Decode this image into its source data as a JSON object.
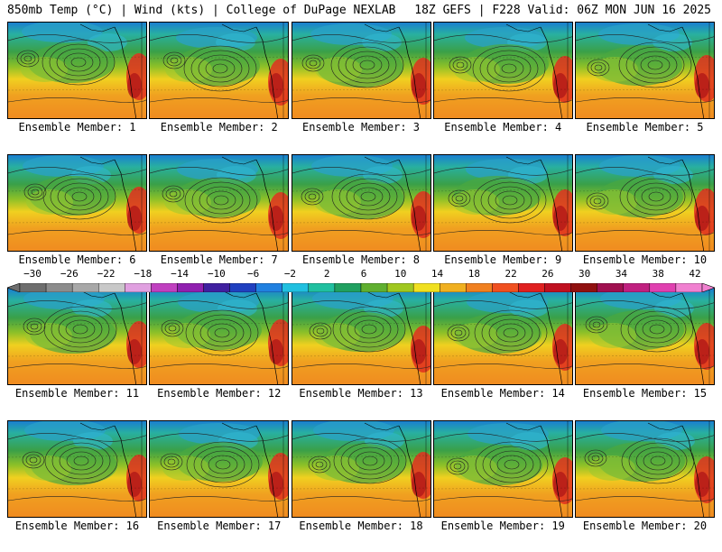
{
  "header": {
    "left": "850mb Temp (°C) | Wind (kts) | College of DuPage NEXLAB",
    "right": "18Z GEFS | F228 Valid: 06Z MON JUN 16 2025"
  },
  "members": [
    "Ensemble Member: 1",
    "Ensemble Member: 2",
    "Ensemble Member: 3",
    "Ensemble Member: 4",
    "Ensemble Member: 5",
    "Ensemble Member: 6",
    "Ensemble Member: 7",
    "Ensemble Member: 8",
    "Ensemble Member: 9",
    "Ensemble Member: 10",
    "Ensemble Member: 11",
    "Ensemble Member: 12",
    "Ensemble Member: 13",
    "Ensemble Member: 14",
    "Ensemble Member: 15",
    "Ensemble Member: 16",
    "Ensemble Member: 17",
    "Ensemble Member: 18",
    "Ensemble Member: 19",
    "Ensemble Member: 20"
  ],
  "colorbar": {
    "ticks": [
      "−30",
      "−26",
      "−22",
      "−18",
      "−14",
      "−10",
      "−6",
      "−2",
      "2",
      "6",
      "10",
      "14",
      "18",
      "22",
      "26",
      "30",
      "34",
      "38",
      "42"
    ],
    "colors": [
      "#6e6e6e",
      "#8c8c8c",
      "#a8a8a8",
      "#c8c8c8",
      "#e0a0e0",
      "#c040c0",
      "#9020b0",
      "#4020a0",
      "#2040c0",
      "#2080e0",
      "#20c0e0",
      "#20c0a0",
      "#20a060",
      "#60b030",
      "#a0c820",
      "#f0e020",
      "#f0b020",
      "#f08020",
      "#f05020",
      "#e02020",
      "#c01020",
      "#901010",
      "#a01050",
      "#c02080",
      "#e040b0",
      "#f080d0"
    ]
  }
}
